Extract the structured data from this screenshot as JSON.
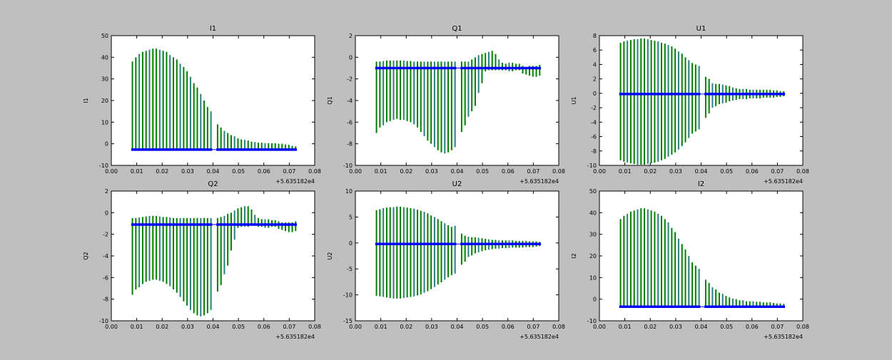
{
  "chart_data": [
    {
      "type": "bar",
      "title": "I1",
      "ylabel": "I1",
      "ylim": [
        -10,
        50
      ],
      "yticks": [
        -10,
        0,
        10,
        20,
        30,
        40,
        50
      ],
      "baseline": -2.7,
      "lo": [
        -2.7,
        -2.7,
        -2.7,
        -2.7,
        -2.7,
        -2.7,
        -2.7,
        -2.7,
        -2.7,
        -2.7,
        -2.7,
        -2.7,
        -2.7,
        -2.7,
        -2.7,
        -2.7,
        -2.7,
        -2.7,
        -2.7,
        -2.7,
        -2.7,
        -2.7,
        -2.7,
        -2.7,
        -2.7,
        -2.7,
        -2.7,
        -2.7,
        -2.7,
        -2.7,
        -2.7,
        -2.7,
        -2.7,
        -2.7,
        -2.7,
        -2.7,
        -2.7,
        -2.7,
        -2.7,
        -2.7,
        -2.7,
        -2.7,
        -2.7,
        -2.7,
        -2.7,
        -2.7,
        -2.7,
        -2.7
      ],
      "hi": [
        38,
        40,
        41.5,
        42.5,
        43,
        43.5,
        44,
        44,
        43.5,
        43,
        42.5,
        41,
        40,
        39,
        37,
        35.5,
        33.5,
        31,
        28,
        26,
        23,
        20,
        17,
        15,
        9,
        7.5,
        6,
        5,
        4,
        3.5,
        2.5,
        2,
        1.8,
        1.5,
        1,
        0.8,
        0.5,
        0.5,
        0.3,
        0.3,
        0.2,
        0.2,
        0,
        0,
        -0.3,
        -0.5,
        -1,
        -1.2
      ]
    },
    {
      "type": "bar",
      "title": "Q1",
      "ylabel": "Q1",
      "ylim": [
        -10,
        2
      ],
      "yticks": [
        -10,
        -8,
        -6,
        -4,
        -2,
        0,
        2
      ],
      "baseline": -1,
      "lo": [
        -7,
        -6.5,
        -6.3,
        -6,
        -5.9,
        -5.8,
        -5.7,
        -5.8,
        -5.8,
        -5.9,
        -6,
        -6.2,
        -6.5,
        -6.9,
        -7.3,
        -7.7,
        -8,
        -8.3,
        -8.6,
        -8.8,
        -8.9,
        -8.8,
        -8.6,
        -8.3,
        -6.9,
        -6.3,
        -5.5,
        -5,
        -4.5,
        -3.3,
        -2.4,
        -1.3,
        -1.2,
        -1.2,
        -1.2,
        -1.2,
        -1.2,
        -1.2,
        -1.3,
        -1.3,
        -1.2,
        -1.2,
        -1.5,
        -1.6,
        -1.7,
        -1.8,
        -1.8,
        -1.7
      ],
      "hi": [
        -0.4,
        -0.4,
        -0.35,
        -0.3,
        -0.3,
        -0.3,
        -0.3,
        -0.3,
        -0.3,
        -0.35,
        -0.35,
        -0.4,
        -0.4,
        -0.4,
        -0.4,
        -0.4,
        -0.4,
        -0.4,
        -0.4,
        -0.4,
        -0.4,
        -0.4,
        -0.4,
        -0.4,
        -0.4,
        -0.4,
        -0.4,
        -0.2,
        0,
        0.2,
        0.3,
        0.4,
        0.5,
        0.6,
        0.3,
        -0.2,
        -0.5,
        -0.6,
        -0.5,
        -0.5,
        -0.6,
        -0.6,
        -0.8,
        -0.9,
        -0.8,
        -0.8,
        -0.8,
        -0.7
      ]
    },
    {
      "type": "bar",
      "title": "U1",
      "ylabel": "U1",
      "ylim": [
        -10,
        8
      ],
      "yticks": [
        -10,
        -8,
        -6,
        -4,
        -2,
        0,
        2,
        4,
        6,
        8
      ],
      "baseline": -0.1,
      "lo": [
        -9.3,
        -9.5,
        -9.6,
        -9.7,
        -9.8,
        -9.9,
        -9.9,
        -9.9,
        -9.8,
        -9.7,
        -9.6,
        -9.5,
        -9.3,
        -9.1,
        -8.8,
        -8.5,
        -8.2,
        -7.8,
        -7.3,
        -6.8,
        -6.2,
        -5.6,
        -5.3,
        -5,
        -3.4,
        -2.8,
        -2,
        -1.8,
        -1.5,
        -1.4,
        -1.3,
        -1.1,
        -1,
        -0.9,
        -0.8,
        -0.8,
        -0.8,
        -0.7,
        -0.7,
        -0.7,
        -0.7,
        -0.6,
        -0.6,
        -0.6,
        -0.6,
        -0.5,
        -0.5,
        -0.4
      ],
      "hi": [
        7,
        7.2,
        7.3,
        7.4,
        7.5,
        7.5,
        7.6,
        7.6,
        7.5,
        7.4,
        7.3,
        7.2,
        7,
        6.9,
        6.7,
        6.5,
        6.2,
        5.8,
        5.5,
        5,
        4.6,
        4.2,
        4,
        3.8,
        2.3,
        2,
        1.4,
        1.3,
        1.3,
        1.2,
        1.1,
        1,
        0.8,
        0.7,
        0.6,
        0.6,
        0.6,
        0.5,
        0.5,
        0.5,
        0.5,
        0.5,
        0.5,
        0.5,
        0.4,
        0.4,
        0.3,
        0.3
      ]
    },
    {
      "type": "bar",
      "title": "Q2",
      "ylabel": "Q2",
      "ylim": [
        -10,
        2
      ],
      "yticks": [
        -10,
        -8,
        -6,
        -4,
        -2,
        0,
        2
      ],
      "baseline": -1.1,
      "lo": [
        -7.6,
        -7.1,
        -6.9,
        -6.6,
        -6.4,
        -6.3,
        -6.2,
        -6.2,
        -6.3,
        -6.4,
        -6.6,
        -6.8,
        -7.1,
        -7.4,
        -7.8,
        -8.2,
        -8.6,
        -9,
        -9.3,
        -9.5,
        -9.6,
        -9.5,
        -9.3,
        -9,
        -7.3,
        -6.7,
        -5.7,
        -4.9,
        -3.5,
        -2.5,
        -1.4,
        -1.3,
        -1.3,
        -1.3,
        -1.2,
        -1.2,
        -1.3,
        -1.3,
        -1.4,
        -1.4,
        -1.3,
        -1.3,
        -1.5,
        -1.6,
        -1.7,
        -1.8,
        -1.8,
        -1.7
      ],
      "hi": [
        -0.5,
        -0.5,
        -0.45,
        -0.4,
        -0.35,
        -0.3,
        -0.3,
        -0.3,
        -0.35,
        -0.4,
        -0.4,
        -0.45,
        -0.5,
        -0.5,
        -0.5,
        -0.5,
        -0.5,
        -0.5,
        -0.5,
        -0.5,
        -0.5,
        -0.5,
        -0.5,
        -0.5,
        -0.5,
        -0.4,
        -0.3,
        -0.1,
        0,
        0.2,
        0.4,
        0.5,
        0.6,
        0.6,
        0.3,
        -0.2,
        -0.5,
        -0.6,
        -0.6,
        -0.6,
        -0.7,
        -0.7,
        -0.8,
        -0.9,
        -0.9,
        -0.9,
        -0.9,
        -0.8
      ]
    },
    {
      "type": "bar",
      "title": "U2",
      "ylabel": "U2",
      "ylim": [
        -15,
        10
      ],
      "yticks": [
        -15,
        -10,
        -5,
        0,
        5,
        10
      ],
      "baseline": -0.2,
      "lo": [
        -10.2,
        -10.3,
        -10.4,
        -10.5,
        -10.6,
        -10.7,
        -10.7,
        -10.7,
        -10.6,
        -10.5,
        -10.4,
        -10.3,
        -10.1,
        -9.9,
        -9.6,
        -9.3,
        -8.9,
        -8.5,
        -8,
        -7.6,
        -7.1,
        -6.6,
        -6.2,
        -5.9,
        -4.2,
        -3.6,
        -2.7,
        -2.4,
        -2,
        -1.8,
        -1.6,
        -1.4,
        -1.3,
        -1.2,
        -1.1,
        -1.1,
        -1,
        -1,
        -1,
        -0.9,
        -0.9,
        -0.9,
        -0.9,
        -0.8,
        -0.8,
        -0.8,
        -0.7,
        -0.6
      ],
      "hi": [
        6.3,
        6.5,
        6.7,
        6.8,
        6.9,
        6.9,
        7,
        7,
        6.9,
        6.8,
        6.7,
        6.6,
        6.4,
        6.2,
        6,
        5.7,
        5.3,
        5,
        4.6,
        4.2,
        3.8,
        3.4,
        3.1,
        3.3,
        1.8,
        1.4,
        1.2,
        1.1,
        1.1,
        1,
        0.9,
        0.8,
        0.7,
        0.6,
        0.6,
        0.5,
        0.5,
        0.5,
        0.5,
        0.5,
        0.4,
        0.4,
        0.4,
        0.4,
        0.3,
        0.3,
        0.3,
        0.2
      ]
    },
    {
      "type": "bar",
      "title": "I2",
      "ylabel": "I2",
      "ylim": [
        -10,
        50
      ],
      "yticks": [
        -10,
        0,
        10,
        20,
        30,
        40,
        50
      ],
      "baseline": -3.5,
      "lo": [
        -3.5,
        -3.5,
        -3.5,
        -3.5,
        -3.5,
        -3.5,
        -3.5,
        -3.5,
        -3.5,
        -3.5,
        -3.5,
        -3.5,
        -3.5,
        -3.5,
        -3.5,
        -3.5,
        -3.5,
        -3.5,
        -3.5,
        -3.5,
        -3.5,
        -3.5,
        -3.5,
        -3.5,
        -3.5,
        -3.5,
        -3.5,
        -3.5,
        -3.5,
        -3.5,
        -3.5,
        -3.5,
        -3.5,
        -3.5,
        -3.5,
        -3.5,
        -3.5,
        -3.5,
        -3.5,
        -3.5,
        -3.5,
        -3.5,
        -3.5,
        -3.5,
        -3.5,
        -3.5,
        -3.5,
        -3.5
      ],
      "hi": [
        37,
        38.5,
        39.5,
        40.5,
        41,
        41.5,
        42,
        42,
        41.5,
        41,
        40.5,
        39.5,
        38.5,
        37,
        35.5,
        33,
        31,
        28,
        25.5,
        23,
        20,
        17,
        15.5,
        14,
        9,
        7.5,
        5.5,
        4.5,
        3,
        2.5,
        1.5,
        0.8,
        0.3,
        0,
        -0.5,
        -0.5,
        -1,
        -1,
        -1,
        -1.2,
        -1.2,
        -1.5,
        -1.5,
        -1.5,
        -1.8,
        -2,
        -2,
        -2.2
      ]
    }
  ],
  "shared": {
    "xlim": [
      0,
      0.08
    ],
    "xticks": [
      "0.00",
      "0.01",
      "0.02",
      "0.03",
      "0.04",
      "0.05",
      "0.06",
      "0.07",
      "0.08"
    ],
    "x_offset_label": "+5.635182e4",
    "segments": [
      [
        0.0083,
        0.0392,
        24
      ],
      [
        0.0418,
        0.0725,
        24
      ]
    ],
    "bar_color": "#007f00",
    "baseline_color": "#0000ff"
  }
}
